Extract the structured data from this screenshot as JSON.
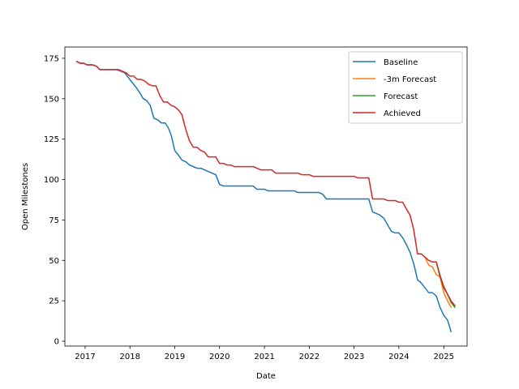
{
  "chart_data": {
    "type": "line",
    "title": "",
    "xlabel": "Date",
    "ylabel": "Open Milestones",
    "xlim": [
      "2016-07-20",
      "2025-07-10"
    ],
    "ylim": [
      -3,
      182
    ],
    "x_ticks": [
      "2017",
      "2018",
      "2019",
      "2020",
      "2021",
      "2022",
      "2023",
      "2024",
      "2025"
    ],
    "y_ticks": [
      0,
      25,
      50,
      75,
      100,
      125,
      150,
      175
    ],
    "grid": false,
    "legend_position": "top-right",
    "colors": {
      "Baseline": "#1f77b4",
      "-3m Forecast": "#ff7f0e",
      "Forecast": "#2ca02c",
      "Achieved": "#d62728"
    },
    "series": [
      {
        "name": "Baseline",
        "points": [
          [
            "2016-10-25",
            173
          ],
          [
            "2016-11-20",
            172
          ],
          [
            "2016-12-20",
            172
          ],
          [
            "2017-01-15",
            171
          ],
          [
            "2017-03-01",
            171
          ],
          [
            "2017-04-05",
            170
          ],
          [
            "2017-05-01",
            168
          ],
          [
            "2017-06-15",
            168
          ],
          [
            "2017-09-15",
            168
          ],
          [
            "2017-10-20",
            167
          ],
          [
            "2017-11-20",
            166
          ],
          [
            "2017-12-20",
            163
          ],
          [
            "2018-01-20",
            160
          ],
          [
            "2018-02-20",
            157
          ],
          [
            "2018-03-20",
            154
          ],
          [
            "2018-04-20",
            150
          ],
          [
            "2018-05-15",
            149
          ],
          [
            "2018-06-15",
            146
          ],
          [
            "2018-07-15",
            138
          ],
          [
            "2018-08-15",
            137
          ],
          [
            "2018-09-15",
            135
          ],
          [
            "2018-10-15",
            135
          ],
          [
            "2018-11-10",
            132
          ],
          [
            "2018-12-05",
            127
          ],
          [
            "2019-01-01",
            118
          ],
          [
            "2019-02-01",
            115
          ],
          [
            "2019-03-01",
            112
          ],
          [
            "2019-04-01",
            111
          ],
          [
            "2019-05-01",
            109
          ],
          [
            "2019-06-01",
            108
          ],
          [
            "2019-07-01",
            107
          ],
          [
            "2019-08-01",
            107
          ],
          [
            "2019-09-01",
            106
          ],
          [
            "2019-10-01",
            105
          ],
          [
            "2019-11-01",
            104
          ],
          [
            "2019-12-01",
            103
          ],
          [
            "2020-01-01",
            97
          ],
          [
            "2020-02-01",
            96
          ],
          [
            "2020-03-01",
            96
          ],
          [
            "2020-10-01",
            96
          ],
          [
            "2020-11-01",
            94
          ],
          [
            "2021-01-01",
            94
          ],
          [
            "2021-02-01",
            93
          ],
          [
            "2021-09-01",
            93
          ],
          [
            "2021-10-01",
            92
          ],
          [
            "2022-03-20",
            92
          ],
          [
            "2022-04-20",
            91
          ],
          [
            "2022-05-20",
            88
          ],
          [
            "2023-03-01",
            88
          ],
          [
            "2023-05-01",
            88
          ],
          [
            "2023-06-01",
            80
          ],
          [
            "2023-07-01",
            79
          ],
          [
            "2023-08-01",
            78
          ],
          [
            "2023-09-01",
            76
          ],
          [
            "2023-10-01",
            72
          ],
          [
            "2023-11-01",
            68
          ],
          [
            "2023-12-01",
            67
          ],
          [
            "2024-01-01",
            67
          ],
          [
            "2024-02-01",
            64
          ],
          [
            "2024-03-01",
            60
          ],
          [
            "2024-04-01",
            55
          ],
          [
            "2024-05-01",
            48
          ],
          [
            "2024-06-01",
            38
          ],
          [
            "2024-07-01",
            36
          ],
          [
            "2024-08-01",
            33
          ],
          [
            "2024-09-01",
            30
          ],
          [
            "2024-10-01",
            30
          ],
          [
            "2024-11-01",
            28
          ],
          [
            "2024-12-01",
            21
          ],
          [
            "2025-01-01",
            16
          ],
          [
            "2025-02-01",
            13
          ],
          [
            "2025-03-01",
            6
          ]
        ]
      },
      {
        "name": "-3m Forecast",
        "points": [
          [
            "2024-08-01",
            52
          ],
          [
            "2024-09-01",
            47
          ],
          [
            "2024-10-01",
            46
          ],
          [
            "2024-11-01",
            41
          ],
          [
            "2024-12-01",
            40
          ],
          [
            "2025-01-01",
            30
          ],
          [
            "2025-02-01",
            25
          ],
          [
            "2025-03-01",
            21
          ]
        ]
      },
      {
        "name": "Forecast",
        "points": [
          [
            "2024-11-01",
            49
          ],
          [
            "2024-12-01",
            41
          ],
          [
            "2025-01-01",
            34
          ],
          [
            "2025-02-01",
            29
          ],
          [
            "2025-03-01",
            24
          ],
          [
            "2025-04-01",
            21
          ]
        ]
      },
      {
        "name": "Achieved",
        "points": [
          [
            "2016-10-25",
            173
          ],
          [
            "2016-11-20",
            172
          ],
          [
            "2016-12-20",
            172
          ],
          [
            "2017-01-15",
            171
          ],
          [
            "2017-03-01",
            171
          ],
          [
            "2017-04-05",
            170
          ],
          [
            "2017-05-01",
            168
          ],
          [
            "2017-06-15",
            168
          ],
          [
            "2017-10-01",
            168
          ],
          [
            "2017-11-01",
            167
          ],
          [
            "2017-12-01",
            166
          ],
          [
            "2018-01-01",
            164
          ],
          [
            "2018-02-01",
            164
          ],
          [
            "2018-03-01",
            162
          ],
          [
            "2018-04-01",
            162
          ],
          [
            "2018-05-01",
            161
          ],
          [
            "2018-06-01",
            159
          ],
          [
            "2018-07-01",
            158
          ],
          [
            "2018-08-01",
            158
          ],
          [
            "2018-09-01",
            152
          ],
          [
            "2018-10-01",
            148
          ],
          [
            "2018-11-01",
            148
          ],
          [
            "2018-12-01",
            146
          ],
          [
            "2019-01-01",
            145
          ],
          [
            "2019-02-01",
            143
          ],
          [
            "2019-03-01",
            140
          ],
          [
            "2019-04-01",
            131
          ],
          [
            "2019-05-01",
            124
          ],
          [
            "2019-06-01",
            120
          ],
          [
            "2019-07-01",
            120
          ],
          [
            "2019-08-01",
            118
          ],
          [
            "2019-09-01",
            117
          ],
          [
            "2019-10-01",
            114
          ],
          [
            "2019-11-01",
            114
          ],
          [
            "2019-12-01",
            114
          ],
          [
            "2020-01-01",
            110
          ],
          [
            "2020-02-01",
            110
          ],
          [
            "2020-03-01",
            109
          ],
          [
            "2020-04-01",
            109
          ],
          [
            "2020-05-01",
            108
          ],
          [
            "2020-10-01",
            108
          ],
          [
            "2020-11-01",
            107
          ],
          [
            "2020-12-01",
            106
          ],
          [
            "2021-03-01",
            106
          ],
          [
            "2021-04-01",
            104
          ],
          [
            "2021-10-01",
            104
          ],
          [
            "2021-11-01",
            103
          ],
          [
            "2022-01-01",
            103
          ],
          [
            "2022-02-01",
            102
          ],
          [
            "2023-01-01",
            102
          ],
          [
            "2023-02-01",
            101
          ],
          [
            "2023-05-01",
            101
          ],
          [
            "2023-06-01",
            88
          ],
          [
            "2023-07-01",
            88
          ],
          [
            "2023-09-01",
            88
          ],
          [
            "2023-10-01",
            87
          ],
          [
            "2023-12-01",
            87
          ],
          [
            "2024-01-01",
            86
          ],
          [
            "2024-02-01",
            86
          ],
          [
            "2024-03-01",
            82
          ],
          [
            "2024-04-01",
            78
          ],
          [
            "2024-05-01",
            69
          ],
          [
            "2024-06-01",
            54
          ],
          [
            "2024-07-01",
            54
          ],
          [
            "2024-08-01",
            52
          ],
          [
            "2024-09-01",
            50
          ],
          [
            "2024-10-01",
            49
          ],
          [
            "2024-11-01",
            49
          ],
          [
            "2024-12-01",
            40
          ],
          [
            "2025-01-01",
            33
          ],
          [
            "2025-02-01",
            29
          ],
          [
            "2025-03-01",
            25
          ],
          [
            "2025-04-01",
            22
          ]
        ]
      }
    ]
  }
}
